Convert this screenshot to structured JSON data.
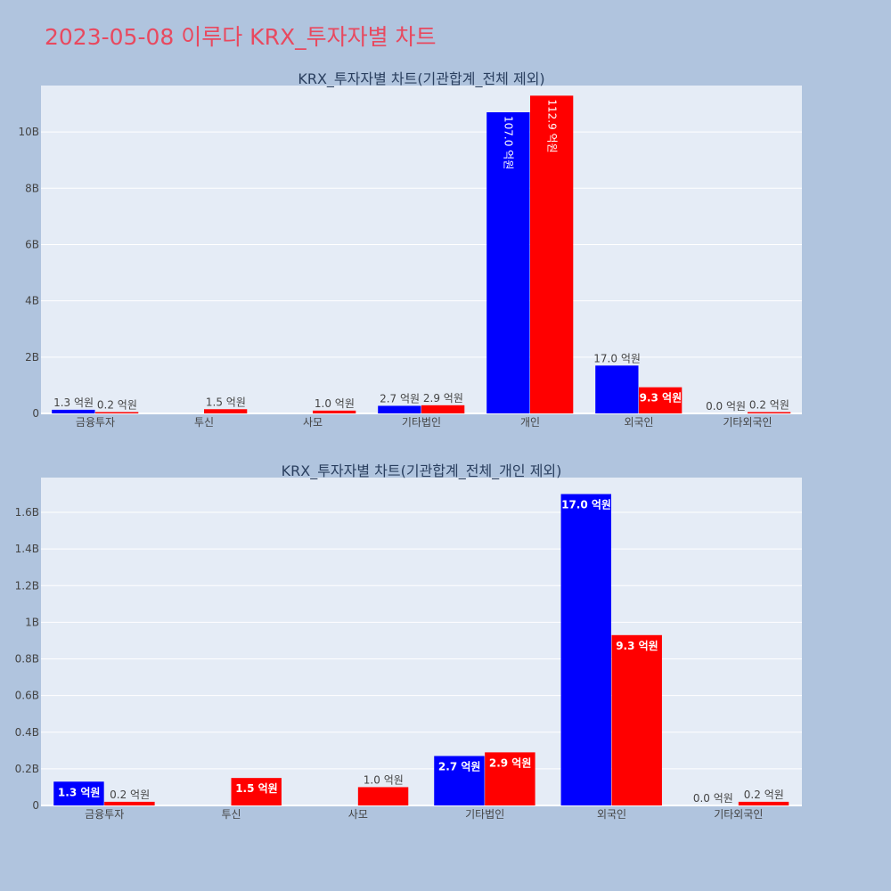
{
  "page": {
    "title": "2023-05-08 이루다 KRX_투자자별 차트",
    "background": "#b0c4de",
    "title_color": "#e8495f"
  },
  "chart_data": [
    {
      "type": "bar",
      "title": "KRX_투자자별 차트(기관합계_전체 제외)",
      "categories": [
        "금융투자",
        "투신",
        "사모",
        "기타법인",
        "개인",
        "외국인",
        "기타외국인"
      ],
      "series": [
        {
          "color": "#0000ff",
          "values": [
            130000000,
            0,
            0,
            270000000,
            10700000000,
            1700000000,
            0
          ]
        },
        {
          "color": "#ff0000",
          "values": [
            20000000,
            150000000,
            100000000,
            290000000,
            11290000000,
            930000000,
            20000000
          ]
        }
      ],
      "labels": [
        [
          "1.3 억원",
          "",
          "",
          "2.7 억원",
          "107.0 억원",
          "17.0 억원",
          "0.0 억원"
        ],
        [
          "0.2 억원",
          "1.5 억원",
          "1.0 억원",
          "2.9 억원",
          "112.9 억원",
          "9.3 억원",
          "0.2 억원"
        ]
      ],
      "ylim": [
        0,
        11650000000
      ],
      "yticks": [
        0,
        2000000000,
        4000000000,
        6000000000,
        8000000000,
        10000000000
      ],
      "ytick_labels": [
        "0",
        "2B",
        "4B",
        "6B",
        "8B",
        "10B"
      ],
      "grid": true,
      "legend": "none"
    },
    {
      "type": "bar",
      "title": "KRX_투자자별 차트(기관합계_전체_개인 제외)",
      "categories": [
        "금융투자",
        "투신",
        "사모",
        "기타법인",
        "외국인",
        "기타외국인"
      ],
      "series": [
        {
          "color": "#0000ff",
          "values": [
            130000000,
            0,
            0,
            270000000,
            1700000000,
            0
          ]
        },
        {
          "color": "#ff0000",
          "values": [
            20000000,
            150000000,
            100000000,
            290000000,
            930000000,
            20000000
          ]
        }
      ],
      "labels": [
        [
          "1.3 억원",
          "",
          "",
          "2.7 억원",
          "17.0 억원",
          "0.0 억원"
        ],
        [
          "0.2 억원",
          "1.5 억원",
          "1.0 억원",
          "2.9 억원",
          "9.3 억원",
          "0.2 억원"
        ]
      ],
      "ylim": [
        0,
        1790000000
      ],
      "yticks": [
        0,
        200000000,
        400000000,
        600000000,
        800000000,
        1000000000,
        1200000000,
        1400000000,
        1600000000
      ],
      "ytick_labels": [
        "0",
        "0.2B",
        "0.4B",
        "0.6B",
        "0.8B",
        "1B",
        "1.2B",
        "1.4B",
        "1.6B"
      ],
      "grid": true,
      "legend": "none"
    }
  ]
}
